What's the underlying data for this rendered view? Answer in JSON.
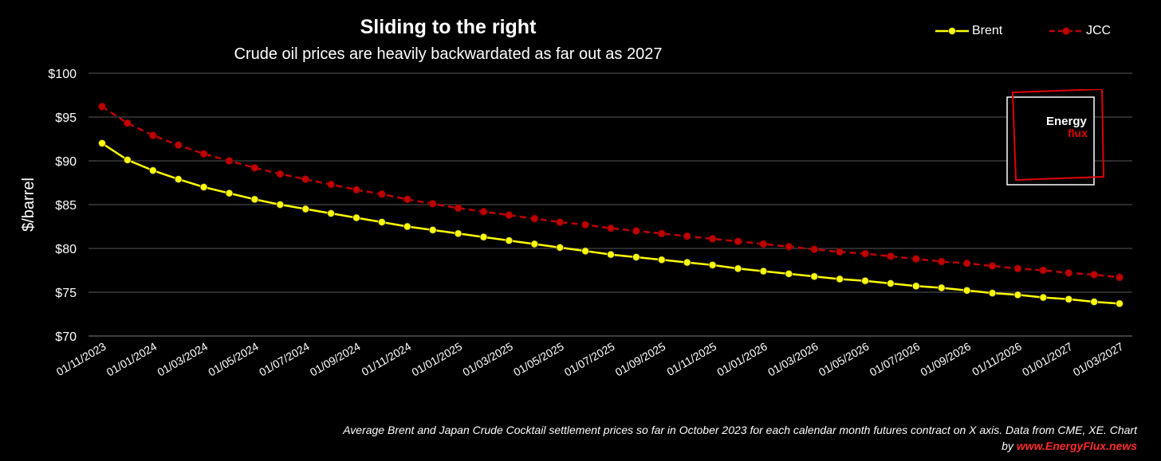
{
  "chart_data": {
    "type": "line",
    "title": "Sliding to the right",
    "subtitle": "Crude oil prices are heavily backwardated as far out as 2027",
    "ylabel": "$/barrel",
    "xlabel": "",
    "ylim": [
      70,
      100
    ],
    "yticks": [
      "$100",
      "$95",
      "$90",
      "$85",
      "$80",
      "$75",
      "$70"
    ],
    "ytick_values": [
      100,
      95,
      90,
      85,
      80,
      75,
      70
    ],
    "x_labels": [
      "01/11/2023",
      "01/01/2024",
      "01/03/2024",
      "01/05/2024",
      "01/07/2024",
      "01/09/2024",
      "01/11/2024",
      "01/01/2025",
      "01/03/2025",
      "01/05/2025",
      "01/07/2025",
      "01/09/2025",
      "01/11/2025",
      "01/01/2026",
      "01/03/2026",
      "01/05/2026",
      "01/07/2026",
      "01/09/2026",
      "01/11/2026",
      "01/01/2027",
      "01/03/2027"
    ],
    "grid": true,
    "legend_position": "top-right",
    "series": [
      {
        "name": "Brent",
        "color": "#ffff00",
        "values": [
          92.0,
          90.1,
          88.9,
          87.9,
          87.0,
          86.3,
          85.6,
          85.0,
          84.5,
          84.0,
          83.5,
          83.0,
          82.5,
          82.1,
          81.7,
          81.3,
          80.9,
          80.5,
          80.1,
          79.7,
          79.3,
          79.0,
          78.7,
          78.4,
          78.1,
          77.7,
          77.4,
          77.1,
          76.8,
          76.5,
          76.3,
          76.0,
          75.7,
          75.5,
          75.2,
          74.9,
          74.7,
          74.4,
          74.2,
          73.9,
          73.7
        ]
      },
      {
        "name": "JCC",
        "color": "#c00000",
        "values": [
          96.2,
          94.3,
          92.9,
          91.8,
          90.8,
          90.0,
          89.2,
          88.5,
          87.9,
          87.3,
          86.7,
          86.2,
          85.6,
          85.1,
          84.6,
          84.2,
          83.8,
          83.4,
          83.0,
          82.7,
          82.3,
          82.0,
          81.7,
          81.4,
          81.1,
          80.8,
          80.5,
          80.2,
          79.9,
          79.6,
          79.4,
          79.1,
          78.8,
          78.5,
          78.3,
          78.0,
          77.7,
          77.5,
          77.2,
          77.0,
          76.7
        ]
      }
    ]
  },
  "logo": {
    "word1": "Energy",
    "word2": "flux"
  },
  "caption": {
    "text": "Average Brent and Japan Crude Cocktail settlement prices so far in October 2023 for each calendar month futures contract on X axis. Data from CME, XE. Chart by ",
    "link": "www.EnergyFlux.news"
  }
}
